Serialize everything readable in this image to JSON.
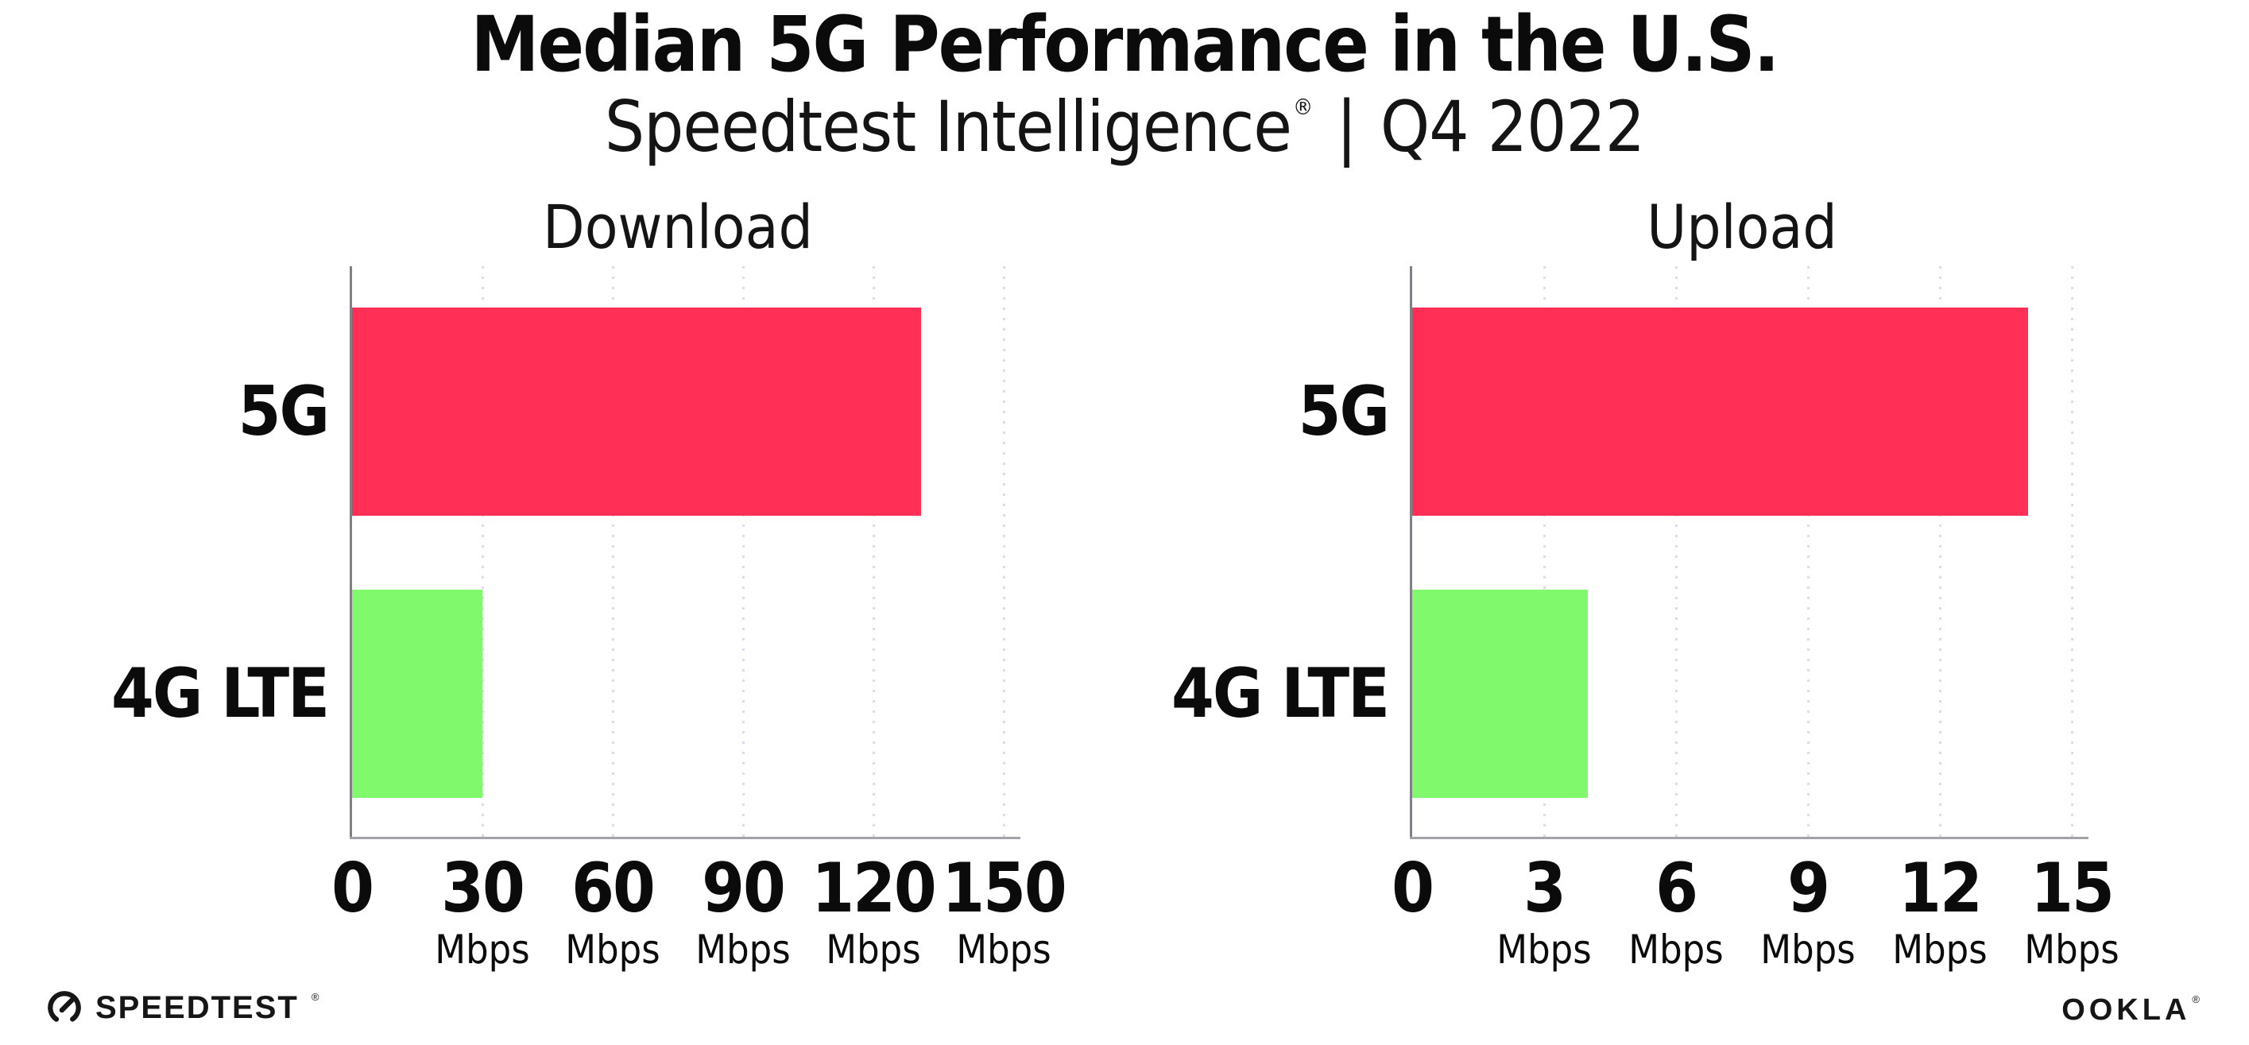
{
  "header": {
    "title": "Median 5G Performance in the U.S.",
    "subtitle_brand": "Speedtest Intelligence",
    "subtitle_reg": "®",
    "subtitle_separator": "|",
    "subtitle_period": "Q4 2022"
  },
  "chart_data": [
    {
      "type": "bar",
      "orientation": "horizontal",
      "title": "Download",
      "categories": [
        "5G",
        "4G LTE"
      ],
      "values": [
        131,
        30
      ],
      "value_unit": "Mbps",
      "xlim": [
        0,
        150
      ],
      "xticks": [
        0,
        30,
        60,
        90,
        120,
        150
      ],
      "tick_unit_label": "Mbps",
      "bar_colors": [
        "#ff2f56",
        "#80f96d"
      ],
      "grid": "dotted-vertical",
      "legend": "none"
    },
    {
      "type": "bar",
      "orientation": "horizontal",
      "title": "Upload",
      "categories": [
        "5G",
        "4G LTE"
      ],
      "values": [
        14,
        4
      ],
      "value_unit": "Mbps",
      "xlim": [
        0,
        15
      ],
      "xticks": [
        0,
        3,
        6,
        9,
        12,
        15
      ],
      "tick_unit_label": "Mbps",
      "bar_colors": [
        "#ff2f56",
        "#80f96d"
      ],
      "grid": "dotted-vertical",
      "legend": "none"
    }
  ],
  "footer": {
    "speedtest_text": "SPEEDTEST",
    "speedtest_reg": "®",
    "speedtest_icon": "gauge-icon",
    "ookla_text": "OOKLA",
    "ookla_reg": "®"
  },
  "colors": {
    "bar_5g": "#ff2f56",
    "bar_4g_lte": "#80f96d",
    "gridline": "#dcdce8",
    "y_axis": "#7f7f86",
    "x_axis": "#a2a2a8",
    "text": "#0b0b0b",
    "background": "#ffffff"
  }
}
